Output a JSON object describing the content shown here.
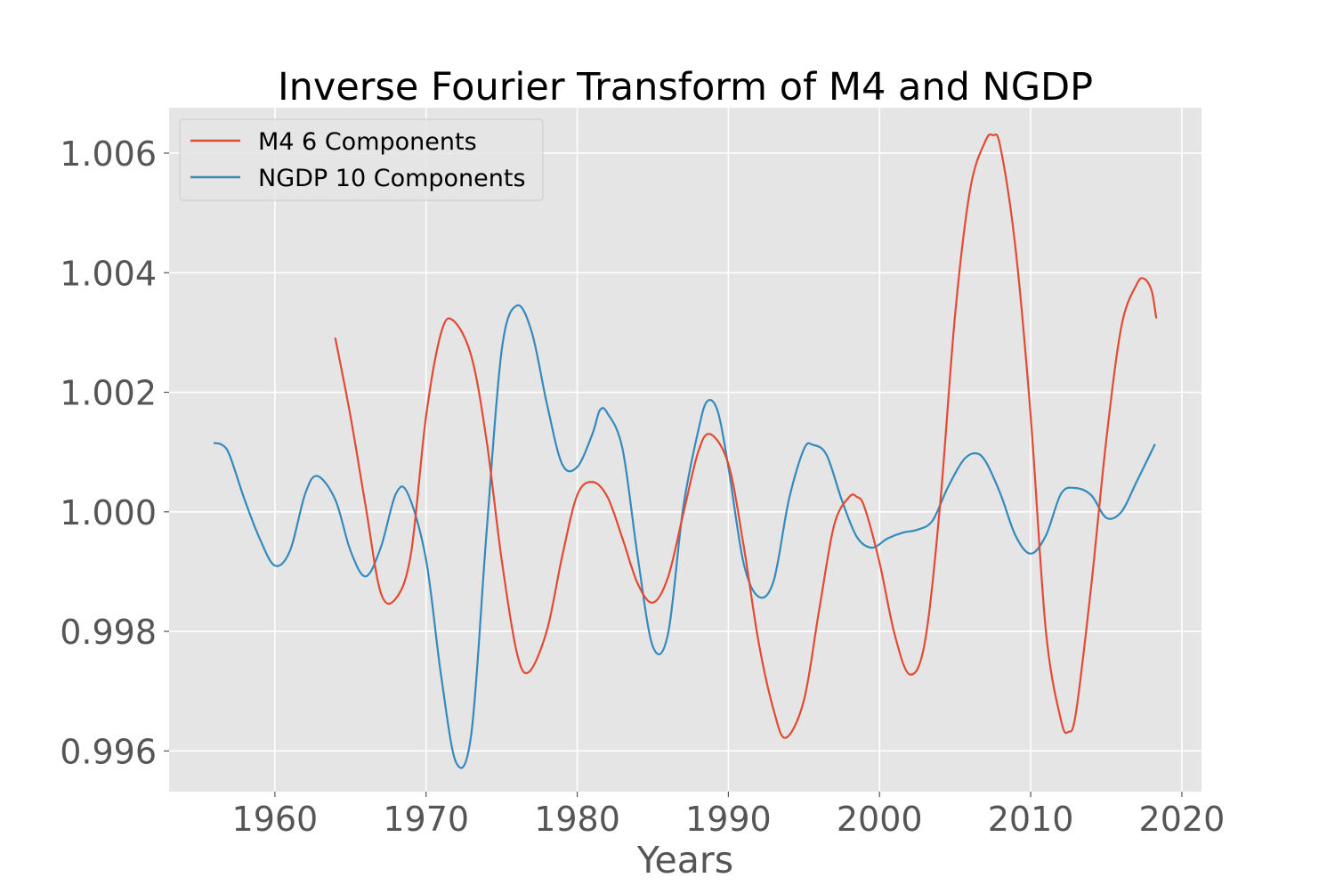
{
  "chart_data": {
    "type": "line",
    "title": "Inverse Fourier Transform of M4 and NGDP",
    "xlabel": "Years",
    "ylabel": "",
    "xlim": [
      1953,
      2021.3
    ],
    "ylim": [
      0.99532,
      1.00676
    ],
    "xticks": [
      1960,
      1970,
      1980,
      1990,
      2000,
      2010,
      2020
    ],
    "xtick_labels": [
      "1960",
      "1970",
      "1980",
      "1990",
      "2000",
      "2010",
      "2020"
    ],
    "yticks": [
      0.996,
      0.998,
      1.0,
      1.002,
      1.004,
      1.006
    ],
    "ytick_labels": [
      "0.996",
      "0.998",
      "1.000",
      "1.002",
      "1.004",
      "1.006"
    ],
    "grid": true,
    "legend_position": "top-left",
    "series": [
      {
        "name": "M4 6 Components",
        "color": "#E24A33",
        "x": [
          1964,
          1965,
          1966,
          1967,
          1968,
          1969,
          1970,
          1971,
          1971.8,
          1973,
          1974,
          1975,
          1976,
          1976.8,
          1978,
          1979,
          1980,
          1981,
          1982,
          1983,
          1984,
          1985,
          1986,
          1987,
          1988,
          1988.8,
          1990,
          1991,
          1992,
          1993,
          1993.8,
          1995,
          1996,
          1997,
          1998,
          1998.5,
          1999,
          2000,
          2001,
          2002,
          2003,
          2004,
          2005,
          2006,
          2007,
          2007.5,
          2008,
          2009,
          2010,
          2011,
          2012,
          2012.5,
          2013,
          2014,
          2015,
          2016,
          2017,
          2017.5,
          2018,
          2018.3
        ],
        "values": [
          1.0029,
          1.0016,
          1.0001,
          0.99865,
          0.99855,
          0.9993,
          1.0016,
          1.003,
          1.0032,
          1.0026,
          1.0012,
          0.9992,
          0.99765,
          0.99732,
          0.99802,
          0.99925,
          1.00028,
          1.0005,
          1.00025,
          0.99955,
          0.9988,
          0.99848,
          0.9989,
          0.99995,
          1.001,
          1.0013,
          1.0008,
          0.99945,
          0.99782,
          0.99668,
          0.99622,
          0.99685,
          0.99835,
          0.99978,
          1.00025,
          1.00025,
          1.00008,
          0.99915,
          0.99795,
          0.99728,
          0.99782,
          1.0001,
          1.0033,
          1.0054,
          1.0062,
          1.0063,
          1.0061,
          1.0044,
          1.0016,
          0.99802,
          0.99652,
          0.99632,
          0.99665,
          0.99875,
          1.0012,
          1.0031,
          1.0038,
          1.0039,
          1.0037,
          1.00325
        ]
      },
      {
        "name": "NGDP 10 Components",
        "color": "#348ABD",
        "x": [
          1956,
          1956.5,
          1957,
          1958,
          1959,
          1960,
          1961,
          1962,
          1962.8,
          1964,
          1965,
          1966,
          1967,
          1968,
          1968.8,
          1970,
          1971,
          1972,
          1973,
          1974,
          1975,
          1976,
          1977,
          1978,
          1979,
          1980,
          1981,
          1981.5,
          1982,
          1983,
          1984,
          1985,
          1986,
          1987,
          1988,
          1988.6,
          1989.3,
          1990,
          1991,
          1992,
          1993,
          1994,
          1995,
          1995.6,
          1996.5,
          1997.5,
          1998.5,
          1999.5,
          2000.5,
          2001.5,
          2002.5,
          2003.5,
          2004.5,
          2005.5,
          2006.3,
          2007,
          2008,
          2009,
          2010,
          2011,
          2012,
          2012.9,
          2014,
          2015,
          2016,
          2017,
          2018.2
        ],
        "values": [
          1.00115,
          1.00112,
          1.00095,
          1.0002,
          0.99955,
          0.9991,
          0.99935,
          1.0003,
          1.0006,
          1.0002,
          0.99935,
          0.99892,
          0.9994,
          1.0003,
          1.0003,
          0.9992,
          0.99725,
          0.9958,
          0.9963,
          0.99965,
          1.0027,
          1.00345,
          1.003,
          1.0018,
          1.0008,
          1.00075,
          1.0013,
          1.0017,
          1.00165,
          1.00105,
          0.99925,
          0.99775,
          0.99795,
          1.00005,
          1.00135,
          1.00185,
          1.00168,
          1.00075,
          0.99915,
          0.99858,
          0.99885,
          1.0002,
          1.00105,
          1.00112,
          1.00095,
          1.0002,
          0.99958,
          0.9994,
          0.99955,
          0.99965,
          0.9997,
          0.99985,
          1.0004,
          1.00085,
          1.00098,
          1.00085,
          1.0003,
          0.9996,
          0.9993,
          0.9996,
          1.0003,
          1.0004,
          1.00028,
          0.9999,
          1.0,
          1.0005,
          1.00112
        ]
      }
    ]
  }
}
